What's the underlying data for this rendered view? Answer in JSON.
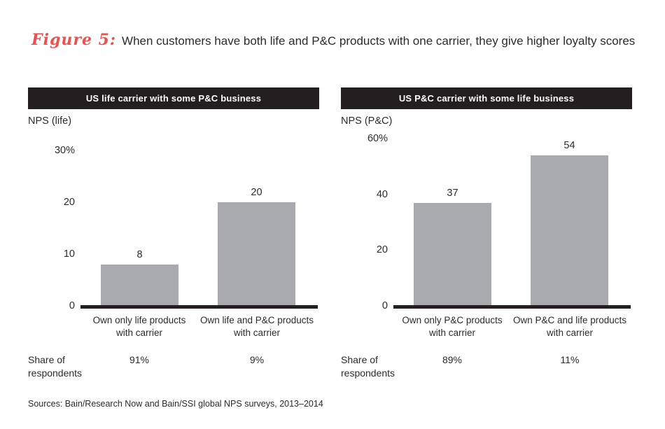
{
  "figure": {
    "label": "Figure 5:",
    "title": "When customers have both life and P&C products with one carrier, they give higher loyalty scores"
  },
  "labels": {
    "share_of_respondents": "Share of\nrespondents"
  },
  "footer": {
    "sources": "Sources: Bain/Research Now and Bain/SSI global NPS surveys, 2013–2014"
  },
  "colors": {
    "figure_label_red": "#ef4f4c",
    "header_bg": "#231f20",
    "bar_gray": "#a8aaad",
    "baseline_black": "#231f20",
    "text_black": "#2b2b2b"
  },
  "chart_data": [
    {
      "type": "bar",
      "title": "US life carrier with some P&C business",
      "ylabel": "NPS (life)",
      "ylim": [
        0,
        30
      ],
      "grid": false,
      "legend_position": "none",
      "yticks": [
        {
          "value": 30,
          "label": "30%"
        },
        {
          "value": 20,
          "label": "20"
        },
        {
          "value": 10,
          "label": "10"
        },
        {
          "value": 0,
          "label": "0"
        }
      ],
      "categories": [
        "Own only life products\nwith carrier",
        "Own life and P&C products\nwith carrier"
      ],
      "values": [
        8,
        20
      ],
      "share_of_respondents": [
        "91%",
        "9%"
      ]
    },
    {
      "type": "bar",
      "title": "US P&C carrier with some life business",
      "ylabel": "NPS (P&C)",
      "ylim": [
        0,
        60
      ],
      "grid": false,
      "legend_position": "none",
      "yticks": [
        {
          "value": 60,
          "label": "60%"
        },
        {
          "value": 40,
          "label": "40"
        },
        {
          "value": 20,
          "label": "20"
        },
        {
          "value": 0,
          "label": "0"
        }
      ],
      "categories": [
        "Own only P&C products\nwith carrier",
        "Own P&C and life products\nwith carrier"
      ],
      "values": [
        37,
        54
      ],
      "share_of_respondents": [
        "89%",
        "11%"
      ]
    }
  ]
}
